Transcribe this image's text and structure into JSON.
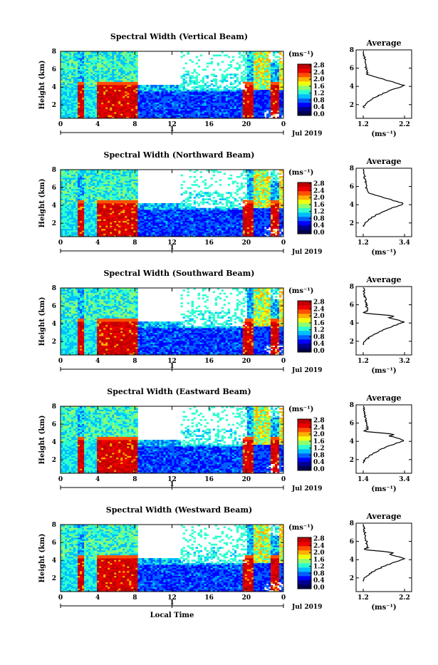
{
  "colors": {
    "jet": [
      "#000050",
      "#00008f",
      "#0000ff",
      "#0060ff",
      "#00bfff",
      "#2fffcf",
      "#8fff6f",
      "#efff0f",
      "#ffb000",
      "#ff5000",
      "#ee0000",
      "#c00000"
    ],
    "white": "#ffffff"
  },
  "chart_data": [
    {
      "type": "heatmap",
      "title": "Spectral Width (Vertical Beam)",
      "ylabel": "Height (km)",
      "yticks": [
        "2",
        "4",
        "6",
        "8"
      ],
      "xticks": [
        "0",
        "4",
        "8",
        "12",
        "16",
        "20",
        "0"
      ],
      "date_tick": "1",
      "date_label": "Jul 2019",
      "colorbar_unit": "(ms⁻¹)",
      "colorbar_ticks": [
        "0.0",
        "0.4",
        "0.8",
        "1.2",
        "1.6",
        "2.0",
        "2.4",
        "2.8"
      ],
      "average": {
        "title": "Average",
        "xticks": [
          "1.2",
          "2.2"
        ],
        "xlabel": "(ms⁻¹)",
        "yticks": [
          "2",
          "4",
          "6",
          "8"
        ],
        "peak": 2.2,
        "base": 1.2
      }
    },
    {
      "type": "heatmap",
      "title": "Spectral Width (Northward Beam)",
      "ylabel": "Height (km)",
      "yticks": [
        "2",
        "4",
        "6",
        "8"
      ],
      "xticks": [
        "0",
        "4",
        "8",
        "12",
        "16",
        "20",
        "0"
      ],
      "date_tick": "1",
      "date_label": "Jul 2019",
      "colorbar_unit": "(ms⁻¹)",
      "colorbar_ticks": [
        "0.0",
        "0.4",
        "0.8",
        "1.2",
        "1.6",
        "2.0",
        "2.4",
        "2.8"
      ],
      "average": {
        "title": "Average",
        "xticks": [
          "1.2",
          "3.4"
        ],
        "xlabel": "(ms⁻¹)",
        "yticks": [
          "2",
          "4",
          "6",
          "8"
        ],
        "peak": 3.4,
        "base": 1.2
      }
    },
    {
      "type": "heatmap",
      "title": "Spectral Width (Southward Beam)",
      "ylabel": "Height (km)",
      "yticks": [
        "2",
        "4",
        "6",
        "8"
      ],
      "xticks": [
        "0",
        "4",
        "8",
        "12",
        "16",
        "20",
        "0"
      ],
      "date_tick": "1",
      "date_label": "Jul 2019",
      "colorbar_unit": "(ms⁻¹)",
      "colorbar_ticks": [
        "0.0",
        "0.4",
        "0.8",
        "1.2",
        "1.6",
        "2.0",
        "2.4",
        "2.8"
      ],
      "average": {
        "title": "Average",
        "xticks": [
          "1.2",
          "3.2"
        ],
        "xlabel": "(ms⁻¹)",
        "yticks": [
          "2",
          "4",
          "6",
          "8"
        ],
        "peak": 3.2,
        "base": 1.2
      }
    },
    {
      "type": "heatmap",
      "title": "Spectral Width (Eastward Beam)",
      "ylabel": "Height (km)",
      "yticks": [
        "2",
        "4",
        "6",
        "8"
      ],
      "xticks": [
        "0",
        "4",
        "8",
        "12",
        "16",
        "20",
        "0"
      ],
      "date_tick": "1",
      "date_label": "Jul 2019",
      "colorbar_unit": "(ms⁻¹)",
      "colorbar_ticks": [
        "0.0",
        "0.4",
        "0.8",
        "1.2",
        "1.6",
        "2.0",
        "2.4",
        "2.8"
      ],
      "average": {
        "title": "Average",
        "xticks": [
          "1.4",
          "3.4"
        ],
        "xlabel": "(ms⁻¹)",
        "yticks": [
          "2",
          "4",
          "6",
          "8"
        ],
        "peak": 3.4,
        "base": 1.4
      }
    },
    {
      "type": "heatmap",
      "title": "Spectral Width (Westward Beam)",
      "ylabel": "Height (km)",
      "yticks": [
        "2",
        "4",
        "6",
        "8"
      ],
      "xticks": [
        "0",
        "4",
        "8",
        "12",
        "16",
        "20",
        "0"
      ],
      "date_tick": "1",
      "date_label": "Jul 2019",
      "colorbar_unit": "(ms⁻¹)",
      "colorbar_ticks": [
        "0.0",
        "0.4",
        "0.8",
        "1.2",
        "1.6",
        "2.0",
        "2.4",
        "2.8"
      ],
      "xlabel": "Local Time",
      "average": {
        "title": "Average",
        "xticks": [
          "1.2",
          "2.2"
        ],
        "xlabel": "(ms⁻¹)",
        "yticks": [
          "2",
          "4",
          "6",
          "8"
        ],
        "peak": 2.2,
        "base": 1.2
      }
    }
  ]
}
